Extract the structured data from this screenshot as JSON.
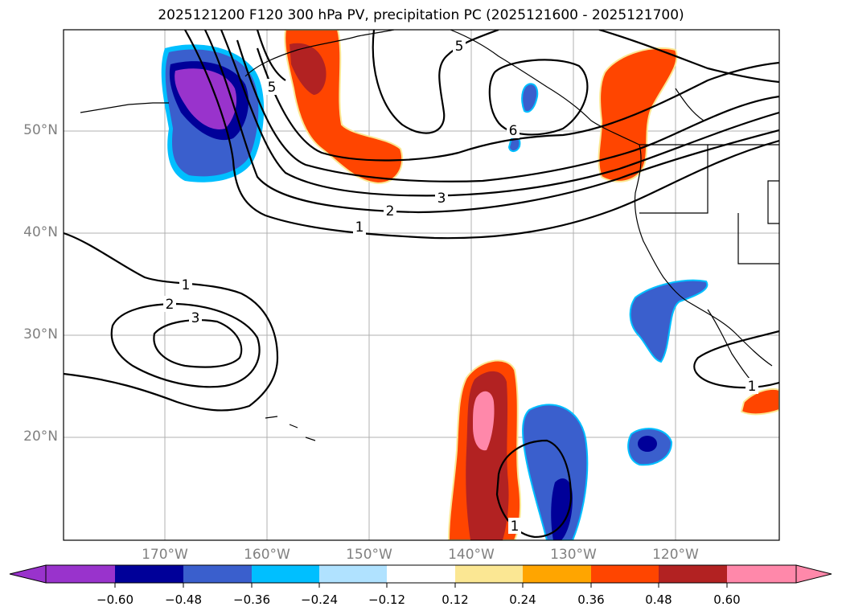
{
  "title": "2025121200 F120 300 hPa PV, precipitation PC (2025121600 - 2025121700)",
  "map": {
    "lat_labels": [
      "50°N",
      "40°N",
      "30°N",
      "20°N"
    ],
    "lon_labels": [
      "170°W",
      "160°W",
      "150°W",
      "140°W",
      "130°W",
      "120°W"
    ],
    "pv_contour_labels": [
      "5",
      "5",
      "6",
      "3",
      "2",
      "1",
      "1",
      "2",
      "3",
      "1",
      "1"
    ]
  },
  "colorbar": {
    "colors": [
      "#9933cc",
      "#000099",
      "#3a5fcd",
      "#00bfff",
      "#b0e2ff",
      "#ffffff",
      "#fbe793",
      "#ffa500",
      "#ff4500",
      "#b22222",
      "#ff88aa"
    ],
    "tick_labels": [
      "−0.60",
      "−0.48",
      "−0.36",
      "−0.24",
      "−0.12",
      "0.12",
      "0.24",
      "0.36",
      "0.48",
      "0.60"
    ]
  }
}
